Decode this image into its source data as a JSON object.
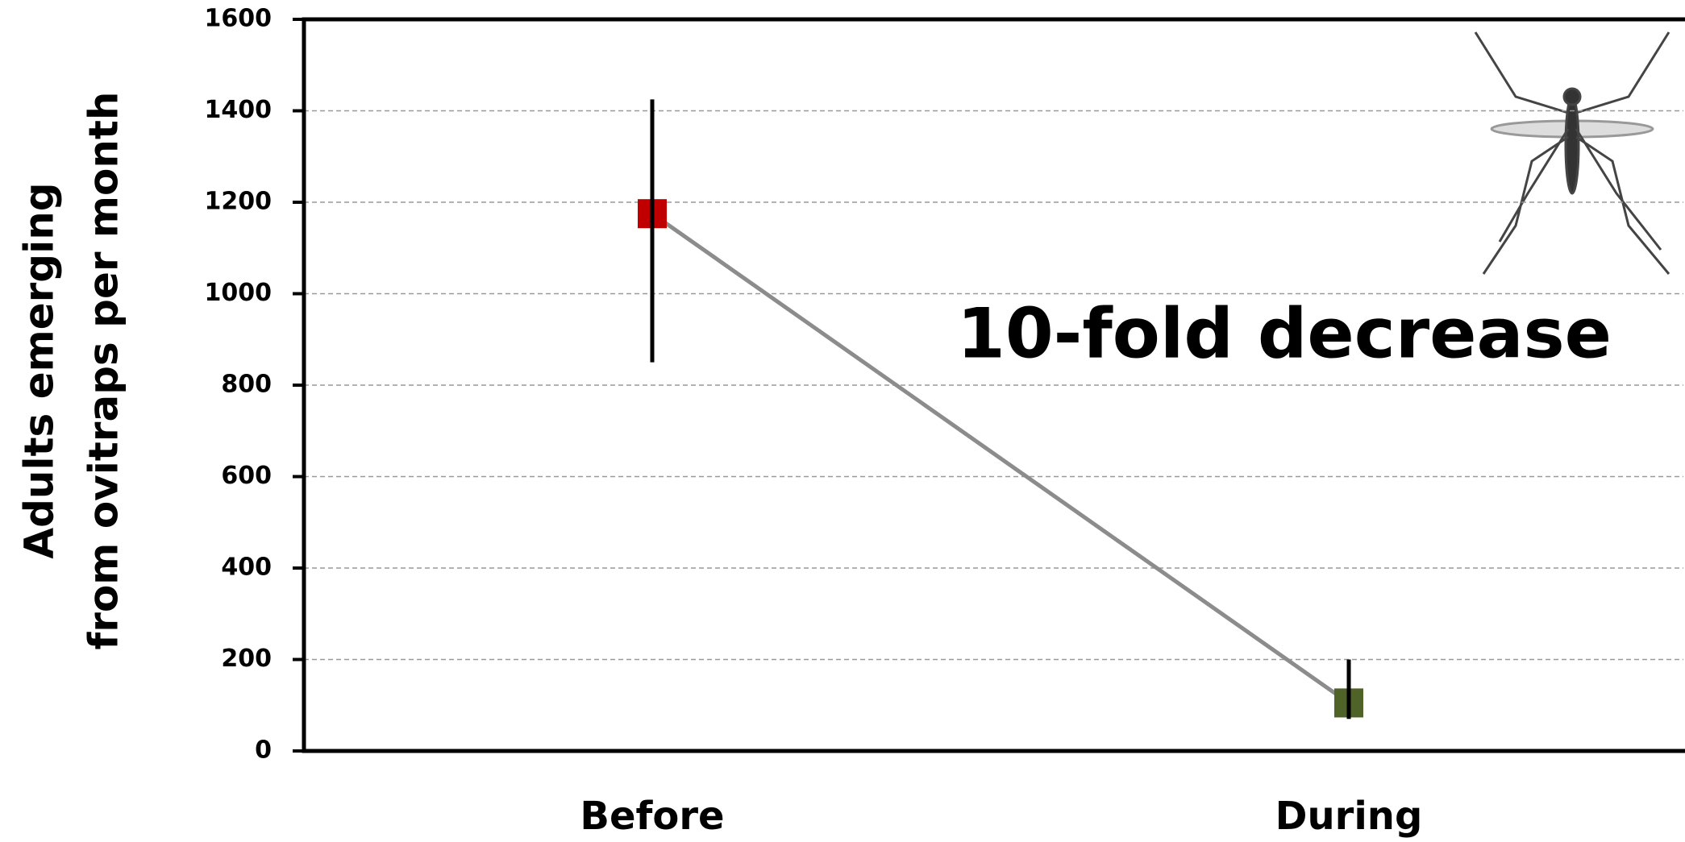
{
  "chart_data": {
    "type": "line",
    "ylabel": [
      "Adults emerging",
      "from ovitraps per month"
    ],
    "annotation": "10-fold decrease",
    "categories": [
      "Before",
      "During"
    ],
    "values": [
      1175,
      105
    ],
    "error_minus": [
      325,
      35
    ],
    "error_plus": [
      250,
      95
    ],
    "point_colors": [
      "#c00000",
      "#4f6228"
    ],
    "line_color": "#8c8c8c",
    "ylim": [
      0,
      1600
    ],
    "yticks": [
      0,
      200,
      400,
      600,
      800,
      1000,
      1200,
      1400,
      1600
    ],
    "grid": true
  }
}
